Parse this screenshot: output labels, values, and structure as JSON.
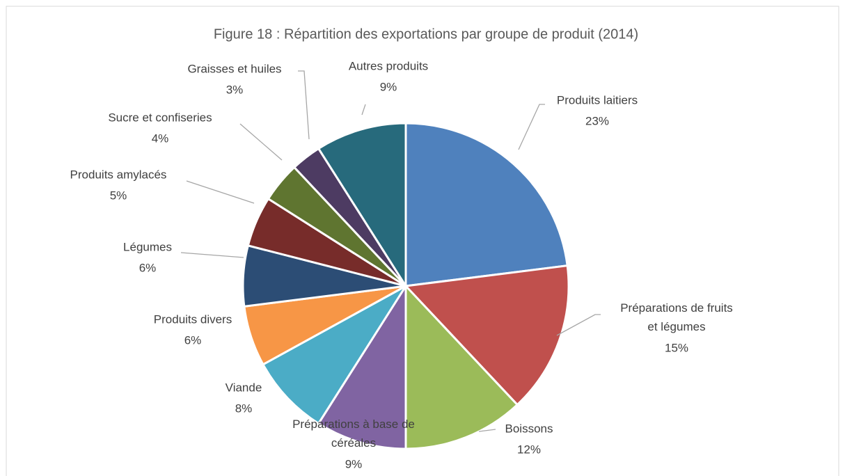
{
  "chart_data": {
    "type": "pie",
    "title": "Figure 18 : Répartition des exportations par groupe de produit (2014)",
    "categories": [
      "Produits laitiers",
      "Préparations de fruits et légumes",
      "Boissons",
      "Préparations à base de céréales",
      "Viande",
      "Produits divers",
      "Légumes",
      "Produits amylacés",
      "Sucre et confiseries",
      "Graisses et huiles",
      "Autres produits"
    ],
    "values": [
      23,
      15,
      12,
      9,
      8,
      6,
      6,
      5,
      4,
      3,
      9
    ],
    "value_labels": [
      "23%",
      "15%",
      "12%",
      "9%",
      "8%",
      "6%",
      "6%",
      "5%",
      "4%",
      "3%",
      "9%"
    ],
    "colors": [
      "#4f81bd",
      "#c0504d",
      "#9bbb59",
      "#8064a2",
      "#4bacc6",
      "#f79646",
      "#2c4d75",
      "#772c2a",
      "#5f7530",
      "#4d3b62",
      "#276a7c"
    ]
  }
}
